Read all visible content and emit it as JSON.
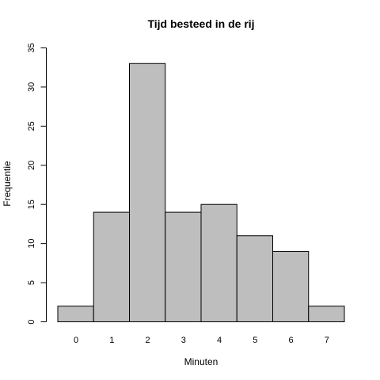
{
  "chart_data": {
    "type": "bar",
    "title": "Tijd besteed in de rij",
    "xlabel": "Minuten",
    "ylabel": "Frequentie",
    "categories": [
      "0",
      "1",
      "2",
      "3",
      "4",
      "5",
      "6",
      "7"
    ],
    "values": [
      2,
      14,
      33,
      14,
      15,
      11,
      9,
      2
    ],
    "ylim": [
      0,
      35
    ],
    "yticks": [
      0,
      5,
      10,
      15,
      20,
      25,
      30,
      35
    ],
    "grid": false,
    "bar_color": "#bebebe",
    "edge_color": "#000000"
  }
}
